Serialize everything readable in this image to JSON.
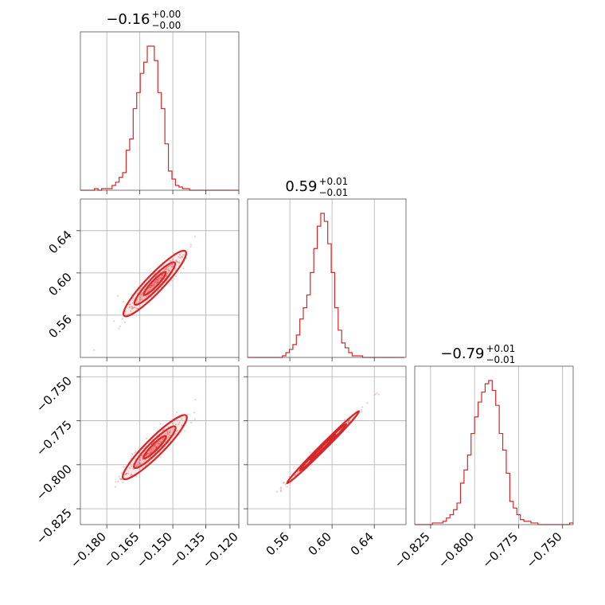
{
  "chart_data": {
    "type": "corner",
    "color": "#d62728",
    "params": [
      {
        "median": "-0.16",
        "plus": "+0.00",
        "minus": "-0.00",
        "range": [
          -0.192,
          -0.12
        ],
        "ticks": [
          -0.18,
          -0.165,
          -0.15,
          -0.135,
          -0.12
        ],
        "tick_labels": [
          "−0.180",
          "−0.165",
          "−0.150",
          "−0.135",
          "−0.120"
        ]
      },
      {
        "median": "0.59",
        "plus": "+0.01",
        "minus": "-0.01",
        "range": [
          0.52,
          0.67
        ],
        "ticks": [
          0.56,
          0.6,
          0.64
        ],
        "tick_labels": [
          "0.56",
          "0.60",
          "0.64"
        ]
      },
      {
        "median": "-0.79",
        "plus": "+0.01",
        "minus": "-0.01",
        "range": [
          -0.834,
          -0.744
        ],
        "ticks": [
          -0.825,
          -0.8,
          -0.775,
          -0.75
        ],
        "tick_labels": [
          "−0.825",
          "−0.800",
          "−0.775",
          "−0.750"
        ]
      }
    ],
    "hist_1d": [
      {
        "x_start": -0.192,
        "bin_width": 0.0016,
        "counts": [
          0,
          0,
          0,
          0,
          1,
          0,
          1,
          1,
          1,
          3,
          5,
          8,
          11,
          25,
          32,
          51,
          61,
          73,
          80,
          90,
          90,
          81,
          61,
          51,
          29,
          12,
          7,
          3,
          2,
          1,
          1,
          0,
          0,
          0,
          0,
          0,
          0,
          0,
          0,
          0,
          0,
          0,
          0,
          0,
          0
        ]
      },
      {
        "x_start": 0.52,
        "bin_width": 0.0033,
        "counts": [
          0,
          0,
          0,
          0,
          0,
          0,
          0,
          0,
          0,
          0,
          1,
          3,
          5,
          8,
          14,
          24,
          31,
          39,
          53,
          68,
          82,
          90,
          85,
          71,
          53,
          31,
          17,
          9,
          6,
          3,
          1,
          1,
          1,
          0,
          0,
          0,
          0,
          0,
          0,
          0,
          0,
          0,
          0,
          0,
          0
        ]
      },
      {
        "x_start": -0.834,
        "bin_width": 0.002,
        "counts": [
          0,
          0,
          0,
          0,
          0,
          1,
          1,
          1,
          2,
          4,
          6,
          9,
          13,
          25,
          33,
          42,
          55,
          65,
          74,
          80,
          85,
          87,
          81,
          72,
          55,
          45,
          31,
          14,
          10,
          6,
          3,
          2,
          2,
          1,
          1,
          0,
          0,
          0,
          0,
          0,
          0,
          0,
          0,
          0,
          1
        ]
      }
    ],
    "hist_2d": [
      {
        "x_param": 0,
        "y_param": 1,
        "correlation": 0.97
      },
      {
        "x_param": 0,
        "y_param": 2,
        "correlation": 0.97
      },
      {
        "x_param": 1,
        "y_param": 2,
        "correlation": 0.99
      }
    ],
    "grid": true
  }
}
